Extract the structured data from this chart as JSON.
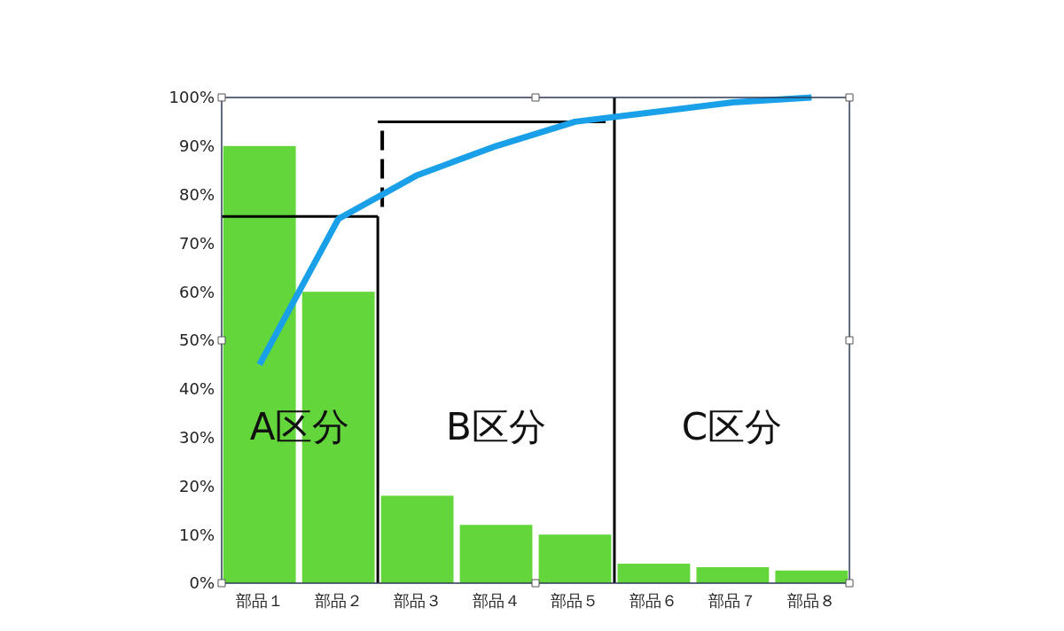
{
  "chart_data": {
    "type": "bar",
    "categories": [
      "部品１",
      "部品２",
      "部品３",
      "部品４",
      "部品５",
      "部品６",
      "部品７",
      "部品８"
    ],
    "series": [
      {
        "color": "#63d63b",
        "values": [
          90,
          60,
          18,
          12,
          10,
          4,
          3.3,
          2.6
        ]
      },
      {
        "type": "line",
        "color": "#1aa0e8",
        "values": [
          45,
          75,
          84,
          90,
          95,
          97,
          99,
          100
        ]
      }
    ],
    "ylim": [
      0,
      100
    ],
    "yticks": [
      {
        "value": 0,
        "label": "0%"
      },
      {
        "value": 10,
        "label": "10%"
      },
      {
        "value": 20,
        "label": "20%"
      },
      {
        "value": 30,
        "label": "30%"
      },
      {
        "value": 40,
        "label": "40%"
      },
      {
        "value": 50,
        "label": "50%"
      },
      {
        "value": 60,
        "label": "60%"
      },
      {
        "value": 70,
        "label": "70%"
      },
      {
        "value": 80,
        "label": "80%"
      },
      {
        "value": 90,
        "label": "90%"
      },
      {
        "value": 100,
        "label": "100%"
      }
    ],
    "annotations": [
      "A区分",
      "B区分",
      "C区分"
    ],
    "ref_lines": [
      {
        "axis": "y",
        "value": 75.5,
        "color": "#000000"
      },
      {
        "axis": "y",
        "value": 95,
        "color": "#000000"
      }
    ],
    "marker": "none",
    "grid": false
  }
}
